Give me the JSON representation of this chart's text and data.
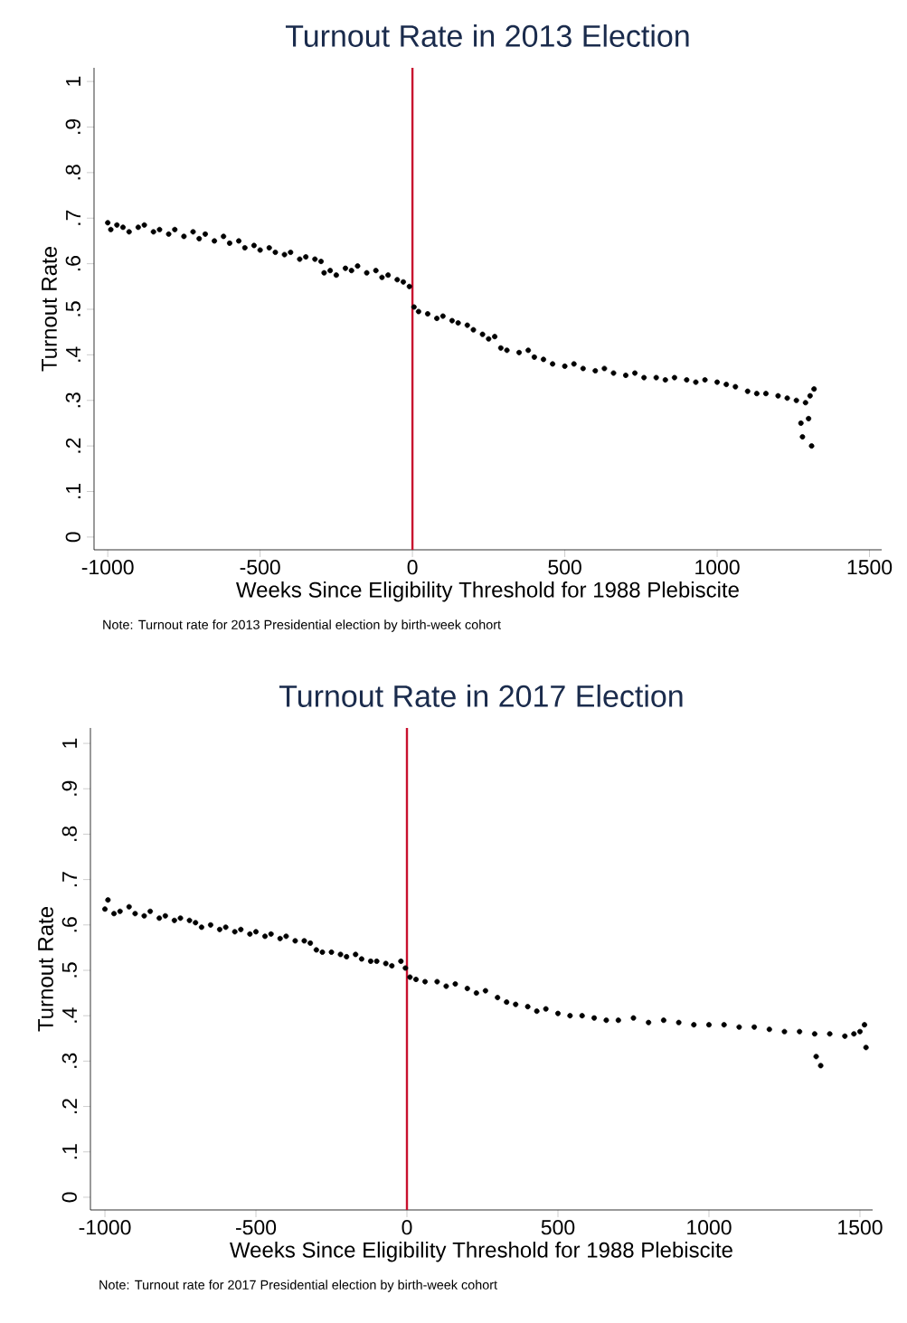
{
  "chart_data": [
    {
      "type": "scatter",
      "title": "Turnout Rate in 2013 Election",
      "xlabel": "Weeks Since Eligibility Threshold for 1988 Plebiscite",
      "ylabel": "Turnout Rate",
      "color": "#000000",
      "annotations": [
        "Note: Turnout rate for 2013 Presidential election by birth-week cohort"
      ],
      "ref_lines": [
        {
          "axis": "x",
          "value": 0,
          "color": "#c8102e"
        }
      ],
      "xlim": [
        -1045,
        1540
      ],
      "ylim": [
        -0.028,
        1.03
      ],
      "xticks": [
        -1000,
        -500,
        0,
        500,
        1000,
        1500
      ],
      "yticks": [
        {
          "value": 0,
          "label": "0"
        },
        {
          "value": 0.1,
          "label": ".1"
        },
        {
          "value": 0.2,
          "label": ".2"
        },
        {
          "value": 0.3,
          "label": ".3"
        },
        {
          "value": 0.4,
          "label": ".4"
        },
        {
          "value": 0.5,
          "label": ".5"
        },
        {
          "value": 0.6,
          "label": ".6"
        },
        {
          "value": 0.7,
          "label": ".7"
        },
        {
          "value": 0.8,
          "label": ".8"
        },
        {
          "value": 0.9,
          "label": ".9"
        },
        {
          "value": 1,
          "label": "1"
        }
      ],
      "x": [
        -1000,
        -990,
        -970,
        -950,
        -930,
        -900,
        -880,
        -850,
        -830,
        -800,
        -780,
        -750,
        -720,
        -700,
        -680,
        -650,
        -620,
        -600,
        -570,
        -550,
        -520,
        -500,
        -470,
        -450,
        -420,
        -400,
        -370,
        -350,
        -320,
        -300,
        -290,
        -270,
        -250,
        -220,
        -200,
        -180,
        -150,
        -120,
        -100,
        -80,
        -50,
        -30,
        -10,
        5,
        20,
        50,
        80,
        100,
        130,
        150,
        180,
        200,
        230,
        250,
        270,
        290,
        310,
        350,
        380,
        400,
        430,
        460,
        500,
        530,
        560,
        600,
        630,
        660,
        700,
        730,
        760,
        800,
        830,
        860,
        900,
        930,
        960,
        1000,
        1030,
        1060,
        1100,
        1130,
        1160,
        1200,
        1230,
        1260,
        1275,
        1280,
        1290,
        1300,
        1305,
        1310,
        1318
      ],
      "values": [
        0.69,
        0.675,
        0.685,
        0.68,
        0.67,
        0.68,
        0.685,
        0.67,
        0.675,
        0.665,
        0.675,
        0.66,
        0.67,
        0.655,
        0.665,
        0.65,
        0.66,
        0.645,
        0.65,
        0.635,
        0.64,
        0.63,
        0.635,
        0.625,
        0.62,
        0.625,
        0.61,
        0.615,
        0.61,
        0.605,
        0.58,
        0.585,
        0.575,
        0.59,
        0.585,
        0.595,
        0.58,
        0.585,
        0.57,
        0.575,
        0.565,
        0.56,
        0.55,
        0.505,
        0.495,
        0.49,
        0.48,
        0.485,
        0.475,
        0.47,
        0.465,
        0.455,
        0.445,
        0.435,
        0.44,
        0.415,
        0.41,
        0.405,
        0.41,
        0.395,
        0.39,
        0.38,
        0.375,
        0.38,
        0.37,
        0.365,
        0.37,
        0.36,
        0.355,
        0.36,
        0.35,
        0.35,
        0.345,
        0.35,
        0.345,
        0.34,
        0.345,
        0.34,
        0.335,
        0.33,
        0.32,
        0.315,
        0.315,
        0.31,
        0.305,
        0.3,
        0.25,
        0.22,
        0.295,
        0.26,
        0.31,
        0.2,
        0.325
      ]
    },
    {
      "type": "scatter",
      "title": "Turnout Rate in 2017 Election",
      "xlabel": "Weeks Since Eligibility Threshold for 1988 Plebiscite",
      "ylabel": "Turnout Rate",
      "color": "#000000",
      "annotations": [
        "Note: Turnout rate for 2017 Presidential election by birth-week cohort"
      ],
      "ref_lines": [
        {
          "axis": "x",
          "value": 0,
          "color": "#c8102e"
        }
      ],
      "xlim": [
        -1048,
        1542
      ],
      "ylim": [
        -0.028,
        1.034
      ],
      "xticks": [
        -1000,
        -500,
        0,
        500,
        1000,
        1500
      ],
      "yticks": [
        {
          "value": 0,
          "label": "0"
        },
        {
          "value": 0.1,
          "label": ".1"
        },
        {
          "value": 0.2,
          "label": ".2"
        },
        {
          "value": 0.3,
          "label": ".3"
        },
        {
          "value": 0.4,
          "label": ".4"
        },
        {
          "value": 0.5,
          "label": ".5"
        },
        {
          "value": 0.6,
          "label": ".6"
        },
        {
          "value": 0.7,
          "label": ".7"
        },
        {
          "value": 0.8,
          "label": ".8"
        },
        {
          "value": 0.9,
          "label": ".9"
        },
        {
          "value": 1,
          "label": "1"
        }
      ],
      "x": [
        -1000,
        -990,
        -970,
        -950,
        -920,
        -900,
        -870,
        -850,
        -820,
        -800,
        -770,
        -750,
        -720,
        -700,
        -680,
        -650,
        -620,
        -600,
        -570,
        -550,
        -520,
        -500,
        -470,
        -450,
        -420,
        -400,
        -370,
        -340,
        -320,
        -300,
        -280,
        -250,
        -220,
        -200,
        -170,
        -150,
        -120,
        -100,
        -70,
        -50,
        -20,
        -5,
        10,
        30,
        60,
        100,
        130,
        160,
        200,
        230,
        260,
        300,
        330,
        360,
        400,
        430,
        460,
        500,
        540,
        580,
        620,
        660,
        700,
        750,
        800,
        850,
        900,
        950,
        1000,
        1050,
        1100,
        1150,
        1200,
        1250,
        1300,
        1350,
        1355,
        1370,
        1400,
        1450,
        1480,
        1500,
        1515,
        1520
      ],
      "values": [
        0.635,
        0.655,
        0.625,
        0.63,
        0.64,
        0.625,
        0.62,
        0.63,
        0.615,
        0.62,
        0.61,
        0.615,
        0.61,
        0.605,
        0.595,
        0.6,
        0.59,
        0.595,
        0.585,
        0.59,
        0.58,
        0.585,
        0.575,
        0.58,
        0.57,
        0.575,
        0.565,
        0.565,
        0.56,
        0.545,
        0.54,
        0.54,
        0.535,
        0.53,
        0.535,
        0.525,
        0.52,
        0.52,
        0.515,
        0.51,
        0.52,
        0.505,
        0.485,
        0.48,
        0.475,
        0.475,
        0.465,
        0.47,
        0.46,
        0.45,
        0.455,
        0.44,
        0.43,
        0.425,
        0.42,
        0.41,
        0.415,
        0.405,
        0.4,
        0.4,
        0.395,
        0.39,
        0.39,
        0.395,
        0.385,
        0.39,
        0.385,
        0.38,
        0.38,
        0.38,
        0.375,
        0.375,
        0.37,
        0.365,
        0.365,
        0.36,
        0.31,
        0.29,
        0.36,
        0.355,
        0.36,
        0.365,
        0.38,
        0.33
      ]
    }
  ]
}
